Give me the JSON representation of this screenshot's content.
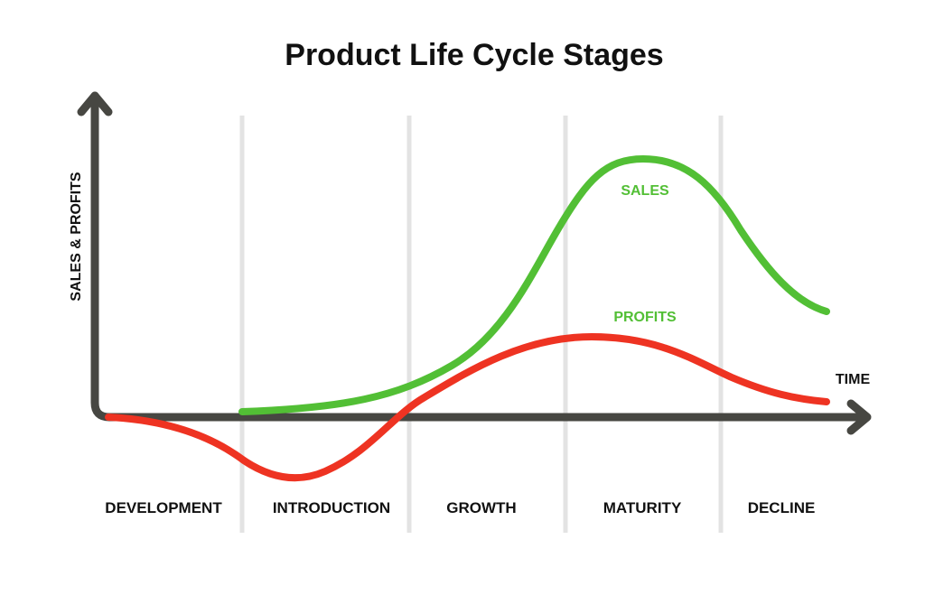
{
  "title": "Product Life Cycle Stages",
  "y_axis_label": "SALES & PROFITS",
  "x_axis_label": "TIME",
  "stages": [
    {
      "id": "development",
      "label": "DEVELOPMENT"
    },
    {
      "id": "introduction",
      "label": "INTRODUCTION"
    },
    {
      "id": "growth",
      "label": "GROWTH"
    },
    {
      "id": "maturity",
      "label": "MATURITY"
    },
    {
      "id": "decline",
      "label": "DECLINE"
    }
  ],
  "series": {
    "sales": {
      "label": "SALES",
      "color": "#52bf35"
    },
    "profits": {
      "label": "PROFITS",
      "color": "#ee3322"
    }
  },
  "colors": {
    "axis": "#474742",
    "divider": "#e3e3e3",
    "text": "#111111"
  }
}
